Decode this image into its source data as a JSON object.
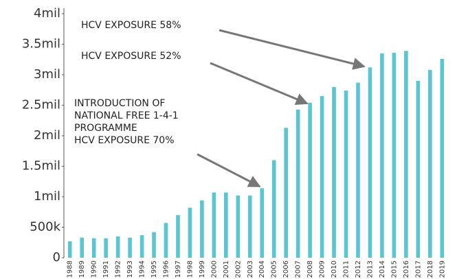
{
  "chart_data": {
    "type": "bar",
    "categories": [
      "1988",
      "1989",
      "1990",
      "1991",
      "1992",
      "1993",
      "1994",
      "1995",
      "1996",
      "1997",
      "1998",
      "1999",
      "2000",
      "2001",
      "2002",
      "2003",
      "2004",
      "2005",
      "2006",
      "2007",
      "2008",
      "2009",
      "2010",
      "2011",
      "2012",
      "2013",
      "2014",
      "2015",
      "2016",
      "2017",
      "2018",
      "2019"
    ],
    "values": [
      270000,
      330000,
      320000,
      320000,
      350000,
      330000,
      370000,
      420000,
      570000,
      700000,
      820000,
      940000,
      1070000,
      1070000,
      1020000,
      1020000,
      1140000,
      1600000,
      2130000,
      2430000,
      2540000,
      2650000,
      2800000,
      2740000,
      2870000,
      3120000,
      3350000,
      3360000,
      3390000,
      2900000,
      3080000,
      3260000
    ],
    "color": "#5bc5d2",
    "ylim": [
      0,
      4000000
    ],
    "yticks": [
      0,
      {
        "value": 500000,
        "label": "500k"
      },
      {
        "value": 1000000,
        "label": "1mil"
      },
      {
        "value": 1500000,
        "label": "1.5mil"
      },
      {
        "value": 2000000,
        "label": "2mil"
      },
      {
        "value": 2500000,
        "label": "2.5mil"
      },
      {
        "value": 3000000,
        "label": "3mil"
      },
      {
        "value": 3500000,
        "label": "3.5mil"
      },
      {
        "value": 4000000,
        "label": "4mil"
      }
    ],
    "grid": false,
    "annotations": [
      [
        "HCV EXPOSURE 58%"
      ],
      [
        "HCV EXPOSURE 52%"
      ],
      [
        "INTRODUCTION OF",
        "NATIONAL FREE 1-4-1",
        "PROGRAMME",
        "HCV EXPOSURE 70%"
      ]
    ]
  }
}
